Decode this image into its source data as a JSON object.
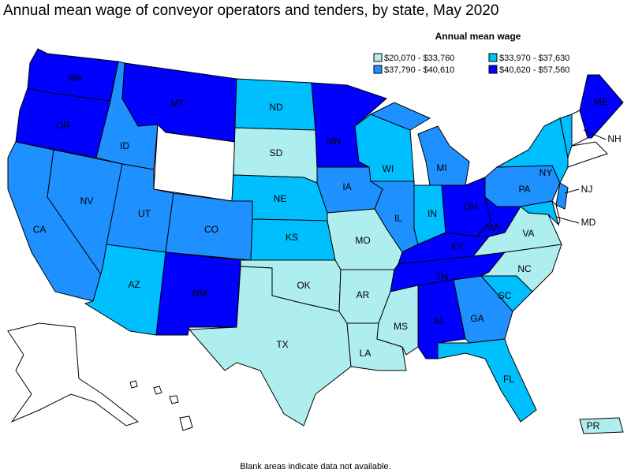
{
  "header": {
    "title": "Annual mean wage of conveyor operators and tenders, by state, May 2020"
  },
  "legend": {
    "title": "Annual mean wage",
    "items": [
      {
        "label": "$20,070 - $33,760",
        "color": "#afeeee",
        "states": [
          "SD",
          "MO",
          "OK",
          "AR",
          "TX",
          "LA",
          "MS",
          "VA",
          "NC",
          "PR"
        ]
      },
      {
        "label": "$33,970 - $37,630",
        "color": "#00bfff",
        "states": [
          "ND",
          "WI",
          "NE",
          "KS",
          "IN",
          "NY",
          "AZ",
          "SC",
          "FL",
          "MD"
        ]
      },
      {
        "label": "$37,790 - $40,610",
        "color": "#1e90ff",
        "states": [
          "ID",
          "NV",
          "CA",
          "UT",
          "CO",
          "IA",
          "IL",
          "MI",
          "PA",
          "GA",
          "NJ"
        ]
      },
      {
        "label": "$40,620 - $57,560",
        "color": "#0000ff",
        "states": [
          "WA",
          "OR",
          "MT",
          "MN",
          "NM",
          "OH",
          "KY",
          "WV",
          "TN",
          "AL",
          "ME"
        ]
      }
    ]
  },
  "blank": {
    "label": "NH"
  },
  "footnote": "Blank areas indicate data not available."
}
